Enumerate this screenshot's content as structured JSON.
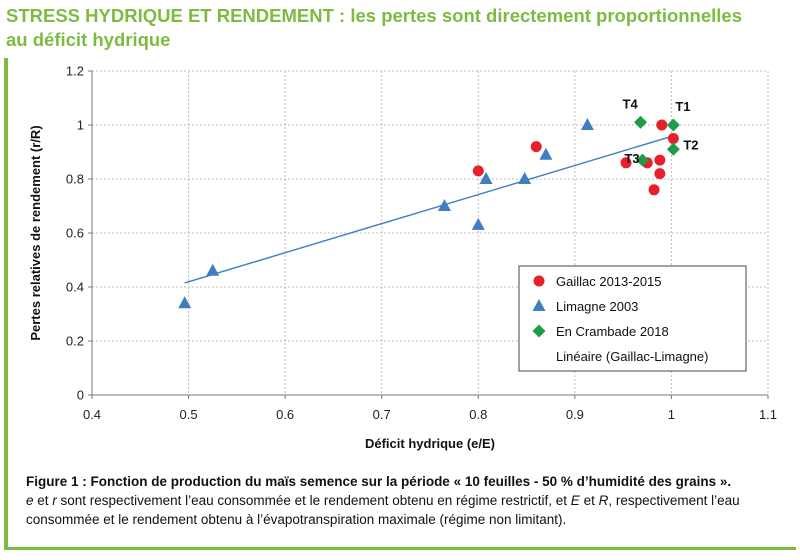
{
  "title_line1": "STRESS HYDRIQUE ET RENDEMENT : les pertes sont directement proportionnelles",
  "title_line2": "au déficit hydrique",
  "colors": {
    "accent": "#7dbb41",
    "gaillac": "#e8202a",
    "limagne": "#3f7ec0",
    "crambade": "#1e9c4a",
    "trend": "#3f7ec0"
  },
  "chart_data": {
    "type": "scatter",
    "xlabel": "Déficit hydrique (e/E)",
    "ylabel": "Pertes relatives de rendement (r/R)",
    "xlim": [
      0.4,
      1.1
    ],
    "ylim": [
      0,
      1.2
    ],
    "xticks": [
      "0.4",
      "0.5",
      "0.6",
      "0.7",
      "0.8",
      "0.9",
      "1",
      "1.1"
    ],
    "yticks": [
      "0",
      "0.2",
      "0.4",
      "0.6",
      "0.8",
      "1",
      "1.2"
    ],
    "grid": true,
    "legend_position": "lower-right",
    "series": [
      {
        "name": "Gaillac 2013-2015",
        "marker": "circle",
        "color": "#e8202a",
        "points": [
          [
            0.8,
            0.83
          ],
          [
            0.86,
            0.92
          ],
          [
            0.953,
            0.86
          ],
          [
            0.975,
            0.86
          ],
          [
            0.982,
            0.76
          ],
          [
            0.988,
            0.82
          ],
          [
            0.988,
            0.87
          ],
          [
            0.99,
            1.0
          ],
          [
            1.002,
            0.95
          ]
        ]
      },
      {
        "name": "Limagne 2003",
        "marker": "triangle",
        "color": "#3f7ec0",
        "points": [
          [
            0.496,
            0.34
          ],
          [
            0.525,
            0.46
          ],
          [
            0.765,
            0.7
          ],
          [
            0.8,
            0.63
          ],
          [
            0.808,
            0.8
          ],
          [
            0.848,
            0.8
          ],
          [
            0.87,
            0.89
          ],
          [
            0.913,
            1.0
          ]
        ]
      },
      {
        "name": "En Crambade 2018",
        "marker": "diamond",
        "color": "#1e9c4a",
        "points": [
          [
            0.968,
            1.01
          ],
          [
            0.97,
            0.87
          ],
          [
            1.002,
            1.0
          ],
          [
            1.002,
            0.91
          ]
        ]
      },
      {
        "name": "Linéaire (Gaillac-Limagne)",
        "marker": "line",
        "color": "#3f7ec0",
        "points": [
          [
            0.496,
            0.415
          ],
          [
            1.002,
            0.96
          ]
        ]
      }
    ],
    "annotations": [
      {
        "text": "T4",
        "x": 0.968,
        "y": 1.01
      },
      {
        "text": "T1",
        "x": 1.002,
        "y": 1.0
      },
      {
        "text": "T3",
        "x": 0.97,
        "y": 0.87
      },
      {
        "text": "T2",
        "x": 1.002,
        "y": 0.91
      }
    ]
  },
  "caption": {
    "title": "Figure 1 : Fonction de production du maïs semence sur la période « 10 feuilles - 50 % d’humidité des grains ».",
    "line2_e": "e",
    "line2_a": " et ",
    "line2_r": "r",
    "line2_b": " sont respectivement l’eau consommée et le rendement obtenu en régime restrictif, et ",
    "line2_E": "E",
    "line2_c": " et ",
    "line2_R": "R",
    "line2_d": ", respectivement l’eau",
    "line3": "consommée et le rendement obtenu à l’évapotranspiration maximale (régime non limitant)."
  }
}
